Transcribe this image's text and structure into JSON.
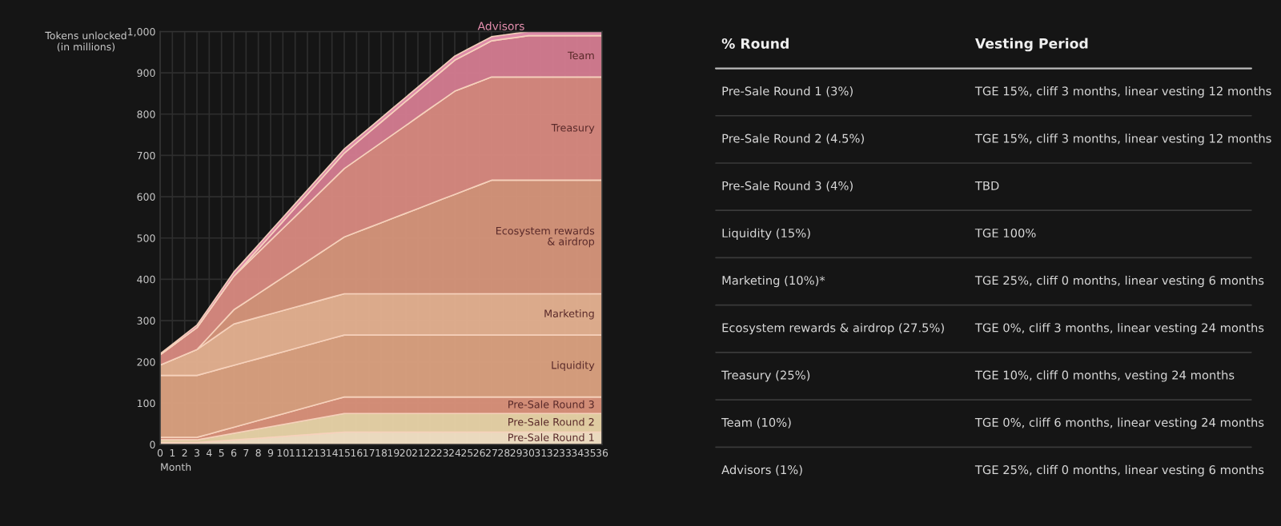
{
  "chart_data": [
    {
      "type": "area",
      "stacked": true,
      "ylabel": "Tokens unlocked\n(in millions)",
      "xlabel": "Month",
      "x": [
        0,
        1,
        2,
        3,
        4,
        5,
        6,
        7,
        8,
        9,
        10,
        11,
        12,
        13,
        14,
        15,
        16,
        17,
        18,
        19,
        20,
        21,
        22,
        23,
        24,
        25,
        26,
        27,
        28,
        29,
        30,
        31,
        32,
        33,
        34,
        35,
        36
      ],
      "xlim": [
        0,
        36
      ],
      "xticks": [
        0,
        1,
        2,
        3,
        4,
        5,
        6,
        7,
        8,
        9,
        10,
        11,
        12,
        13,
        14,
        15,
        16,
        17,
        18,
        19,
        20,
        21,
        22,
        23,
        24,
        25,
        26,
        27,
        28,
        29,
        30,
        31,
        32,
        33,
        34,
        35,
        36
      ],
      "ylim": [
        0,
        1000
      ],
      "yticks": [
        0,
        100,
        200,
        300,
        400,
        500,
        600,
        700,
        800,
        900,
        {
          "value": 1000,
          "label": "1,000"
        }
      ],
      "grid": true,
      "legend": false,
      "series": [
        {
          "name": "Pre-Sale Round 1",
          "color": "#f2e0c4",
          "values": [
            4.5,
            4.5,
            4.5,
            4.5,
            6.6,
            8.8,
            10.9,
            13,
            15.1,
            17.3,
            19.4,
            21.5,
            23.6,
            25.8,
            27.9,
            30,
            30,
            30,
            30,
            30,
            30,
            30,
            30,
            30,
            30,
            30,
            30,
            30,
            30,
            30,
            30,
            30,
            30,
            30,
            30,
            30,
            30
          ]
        },
        {
          "name": "Pre-Sale Round 2",
          "color": "#e6d2a6",
          "values": [
            6.75,
            6.75,
            6.75,
            6.75,
            9.9,
            13.1,
            16.3,
            19.5,
            22.7,
            25.8,
            29,
            32.2,
            35.4,
            38.6,
            41.8,
            45,
            45,
            45,
            45,
            45,
            45,
            45,
            45,
            45,
            45,
            45,
            45,
            45,
            45,
            45,
            45,
            45,
            45,
            45,
            45,
            45,
            45
          ]
        },
        {
          "name": "Pre-Sale Round 3",
          "color": "#d8917a",
          "values": [
            6,
            6,
            6,
            6,
            8.8,
            11.7,
            14.5,
            17.3,
            20.2,
            23,
            25.8,
            28.7,
            31.5,
            34.3,
            37.2,
            40,
            40,
            40,
            40,
            40,
            40,
            40,
            40,
            40,
            40,
            40,
            40,
            40,
            40,
            40,
            40,
            40,
            40,
            40,
            40,
            40,
            40
          ]
        },
        {
          "name": "Liquidity",
          "color": "#d9a07f",
          "values": [
            150,
            150,
            150,
            150,
            150,
            150,
            150,
            150,
            150,
            150,
            150,
            150,
            150,
            150,
            150,
            150,
            150,
            150,
            150,
            150,
            150,
            150,
            150,
            150,
            150,
            150,
            150,
            150,
            150,
            150,
            150,
            150,
            150,
            150,
            150,
            150,
            150
          ]
        },
        {
          "name": "Marketing",
          "color": "#e2b08f",
          "values": [
            25,
            37.5,
            50,
            62.5,
            75,
            87.5,
            100,
            100,
            100,
            100,
            100,
            100,
            100,
            100,
            100,
            100,
            100,
            100,
            100,
            100,
            100,
            100,
            100,
            100,
            100,
            100,
            100,
            100,
            100,
            100,
            100,
            100,
            100,
            100,
            100,
            100,
            100
          ]
        },
        {
          "name": "Ecosystem rewards\n& airdrop",
          "color": "#d4947a",
          "values": [
            0,
            0,
            0,
            0,
            11.5,
            22.9,
            34.4,
            45.8,
            57.3,
            68.8,
            80.2,
            91.7,
            103.1,
            114.6,
            126,
            137.5,
            149,
            160.4,
            171.9,
            183.3,
            194.8,
            206.3,
            217.7,
            229.2,
            240.6,
            252.1,
            263.5,
            275,
            275,
            275,
            275,
            275,
            275,
            275,
            275,
            275,
            275
          ]
        },
        {
          "name": "Treasury",
          "color": "#d6887f",
          "values": [
            25,
            34.4,
            43.8,
            53.1,
            62.5,
            71.9,
            81.3,
            90.6,
            100,
            109.4,
            118.8,
            128.1,
            137.5,
            146.9,
            156.3,
            165.6,
            175,
            184.4,
            193.8,
            203.1,
            212.5,
            221.9,
            231.3,
            240.6,
            250,
            250,
            250,
            250,
            250,
            250,
            250,
            250,
            250,
            250,
            250,
            250,
            250
          ]
        },
        {
          "name": "Team",
          "color": "#d27b8f",
          "values": [
            0,
            0,
            0,
            0,
            0,
            0,
            0,
            4.2,
            8.3,
            12.5,
            16.7,
            20.8,
            25,
            29.2,
            33.3,
            37.5,
            41.7,
            45.8,
            50,
            54.2,
            58.3,
            62.5,
            66.7,
            70.8,
            75,
            79.2,
            83.3,
            87.5,
            91.7,
            95.8,
            100,
            100,
            100,
            100,
            100,
            100,
            100
          ]
        },
        {
          "name": "Advisors",
          "color": "#e48fae",
          "values": [
            2.5,
            3.75,
            5,
            6.25,
            7.5,
            8.75,
            10,
            10,
            10,
            10,
            10,
            10,
            10,
            10,
            10,
            10,
            10,
            10,
            10,
            10,
            10,
            10,
            10,
            10,
            10,
            10,
            10,
            10,
            10,
            10,
            10,
            10,
            10,
            10,
            10,
            10,
            10
          ]
        }
      ]
    },
    {
      "type": "other",
      "annotations": [
        "% Round",
        "Vesting Period",
        "Pre-Sale Round 1 (3%)",
        "TGE 15%, cliff 3 months, linear vesting 12 months",
        "Pre-Sale Round 2 (4.5%)",
        "TGE 15%, cliff 3 months, linear vesting 12 months",
        "Pre-Sale Round 3 (4%)",
        "TBD",
        "Liquidity (15%)",
        "TGE 100%",
        "Marketing (10%)*",
        "TGE 25%, cliff 0 months, linear vesting 6 months",
        "Ecosystem rewards & airdrop (27.5%)",
        "TGE 0%, cliff 3 months, linear vesting 24 months",
        "Treasury (25%)",
        "TGE 10%, cliff 0 months, vesting 24 months",
        "Team (10%)",
        "TGE 0%, cliff 6 months, linear vesting 24 months",
        "Advisors (1%)",
        "TGE 25%, cliff 0 months, linear vesting 6 months"
      ]
    }
  ]
}
